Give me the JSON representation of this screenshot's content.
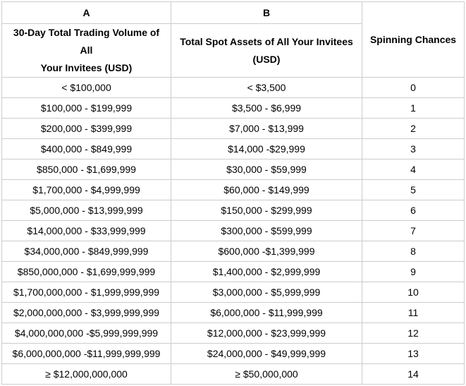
{
  "colors": {
    "border": "#cccccc",
    "text": "#000000",
    "background": "#ffffff"
  },
  "table": {
    "columns": {
      "a_letter": "A",
      "b_letter": "B",
      "a_title": "30-Day Total Trading Volume of All Your Invitees (USD)",
      "a_title_lines": [
        "30-Day Total Trading Volume of All",
        "Your Invitees (USD)"
      ],
      "b_title": "Total Spot Assets of All Your Invitees (USD)",
      "b_title_lines": [
        "Total Spot Assets of All Your Invitees",
        "(USD)"
      ],
      "c_title": "Spinning Chances"
    },
    "rows": [
      {
        "volume": "< $100,000",
        "assets": "< $3,500",
        "chances": "0"
      },
      {
        "volume": "$100,000 - $199,999",
        "assets": "$3,500 - $6,999",
        "chances": "1"
      },
      {
        "volume": "$200,000 - $399,999",
        "assets": "$7,000 - $13,999",
        "chances": "2"
      },
      {
        "volume": "$400,000 - $849,999",
        "assets": "$14,000 -$29,999",
        "chances": "3"
      },
      {
        "volume": "$850,000 - $1,699,999",
        "assets": "$30,000 - $59,999",
        "chances": "4"
      },
      {
        "volume": "$1,700,000 - $4,999,999",
        "assets": "$60,000 - $149,999",
        "chances": "5"
      },
      {
        "volume": "$5,000,000 - $13,999,999",
        "assets": "$150,000 - $299,999",
        "chances": "6"
      },
      {
        "volume": "$14,000,000 - $33,999,999",
        "assets": "$300,000 - $599,999",
        "chances": "7"
      },
      {
        "volume": "$34,000,000 - $849,999,999",
        "assets": "$600,000 -$1,399,999",
        "chances": "8"
      },
      {
        "volume": "$850,000,000 - $1,699,999,999",
        "assets": "$1,400,000 - $2,999,999",
        "chances": "9"
      },
      {
        "volume": "$1,700,000,000 - $1,999,999,999",
        "assets": "$3,000,000 - $5,999,999",
        "chances": "10"
      },
      {
        "volume": "$2,000,000,000 - $3,999,999,999",
        "assets": "$6,000,000 - $11,999,999",
        "chances": "11"
      },
      {
        "volume": "$4,000,000,000 -$5,999,999,999",
        "assets": "$12,000,000 - $23,999,999",
        "chances": "12"
      },
      {
        "volume": "$6,000,000,000 -$11,999,999,999",
        "assets": "$24,000,000 - $49,999,999",
        "chances": "13"
      },
      {
        "volume": "≥ $12,000,000,000",
        "assets": "≥ $50,000,000",
        "chances": "14"
      }
    ]
  }
}
